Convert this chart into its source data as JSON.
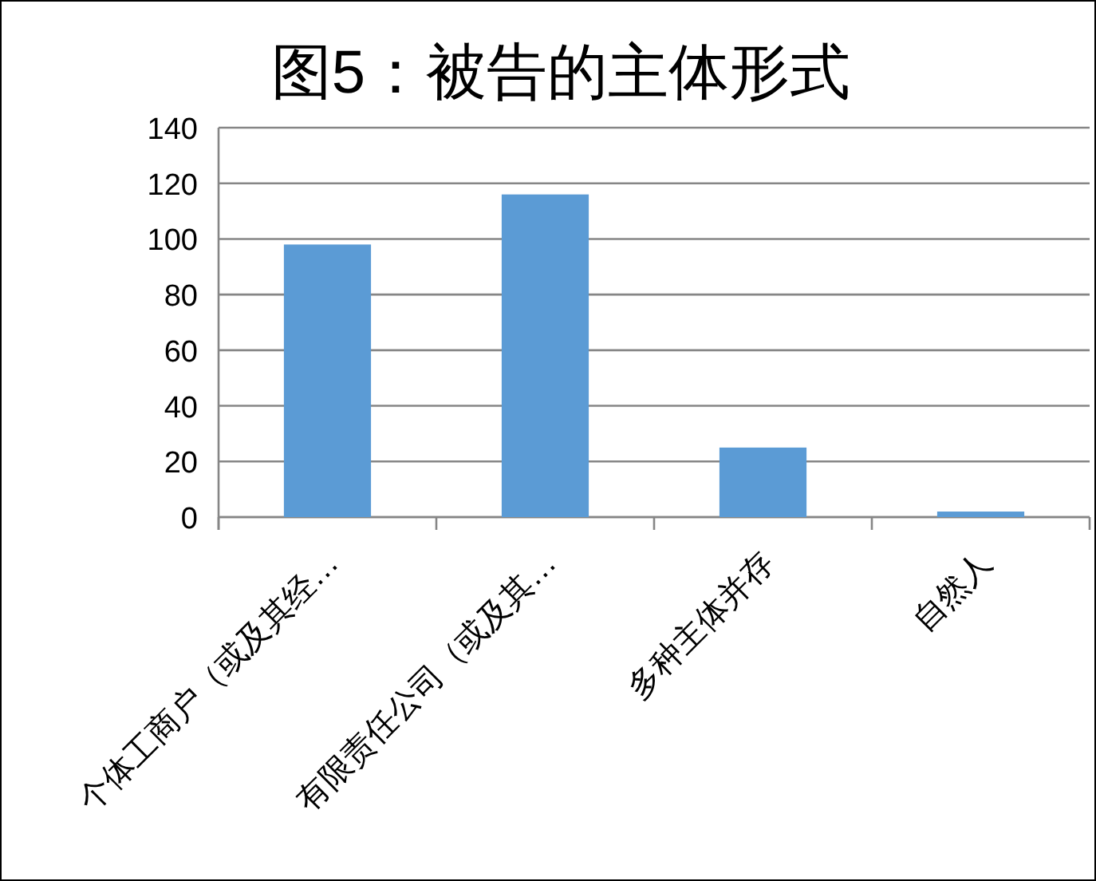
{
  "chart_data": {
    "type": "bar",
    "title": "图5：被告的主体形式",
    "categories": [
      "个体工商户（或及其经…",
      "有限责任公司（或及其…",
      "多种主体并存",
      "自然人"
    ],
    "values": [
      98,
      116,
      25,
      2
    ],
    "color": "#5b9bd5",
    "ylim": [
      0,
      140
    ],
    "yticks": [
      0,
      20,
      40,
      60,
      80,
      100,
      120,
      140
    ],
    "grid": "y"
  }
}
